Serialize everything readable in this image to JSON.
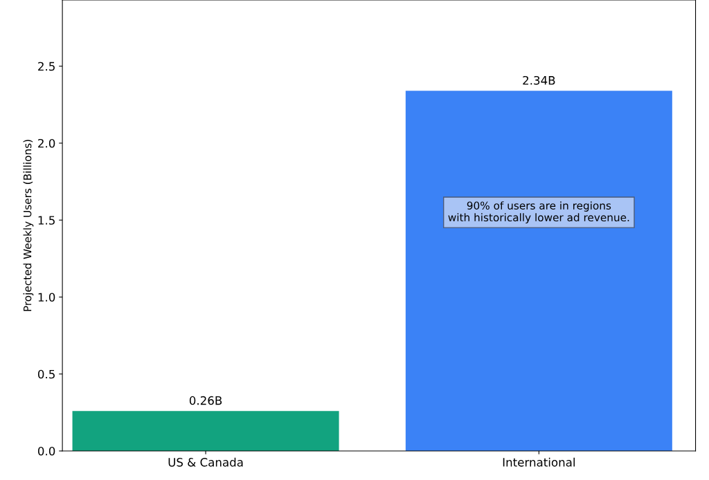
{
  "chart_data": {
    "type": "bar",
    "ylabel": "Projected Weekly Users (Billions)",
    "categories": [
      "US & Canada",
      "International"
    ],
    "values": [
      0.26,
      2.34
    ],
    "colors": [
      "#12a37f",
      "#3b82f6"
    ],
    "value_labels": [
      "0.26B",
      "2.34B"
    ],
    "ylim": [
      0,
      2.93
    ],
    "yticks": [
      {
        "value": 0,
        "label": "0.0"
      },
      {
        "value": 0.5,
        "label": "0.5"
      },
      {
        "value": 1.0,
        "label": "1.0"
      },
      {
        "value": 1.5,
        "label": "1.5"
      },
      {
        "value": 2.0,
        "label": "2.0"
      },
      {
        "value": 2.5,
        "label": "2.5"
      }
    ],
    "annotations": [
      "90% of users are in regions\nwith historically lower ad revenue."
    ],
    "grid": false
  }
}
